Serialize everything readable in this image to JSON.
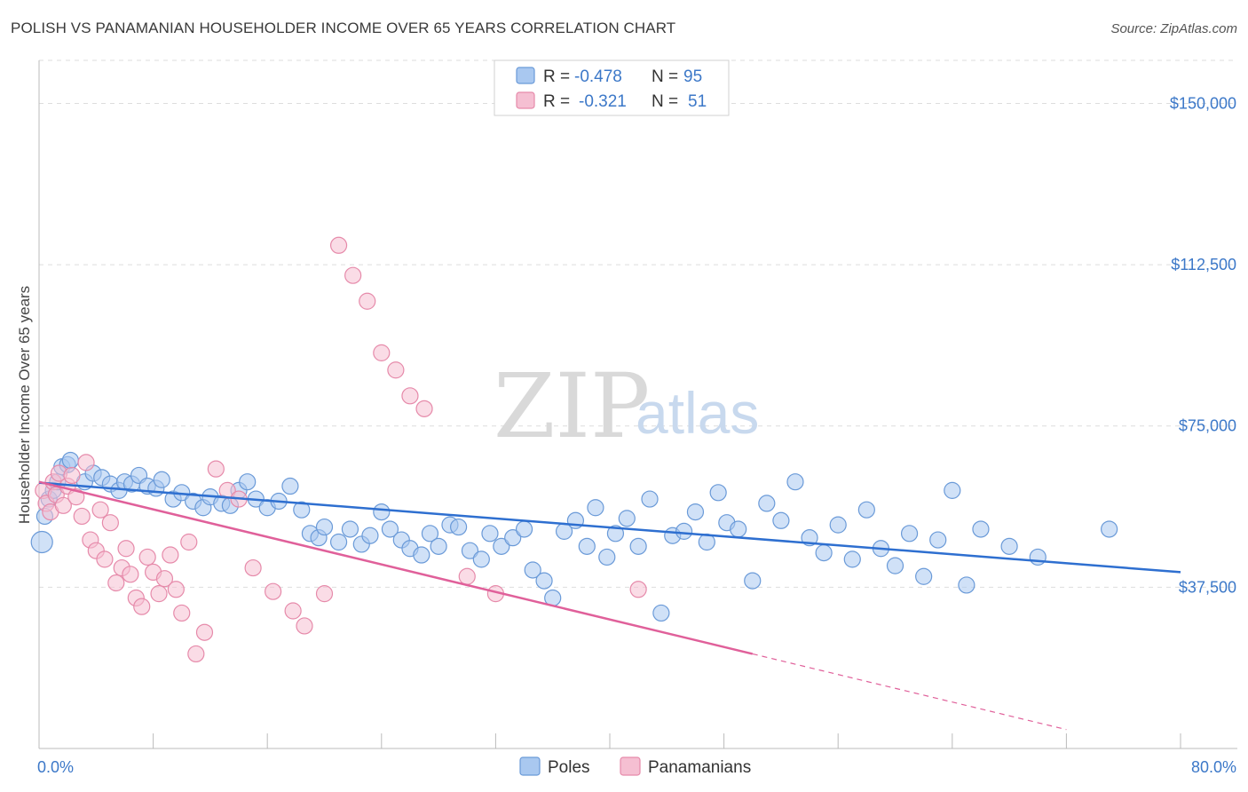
{
  "header": {
    "title": "POLISH VS PANAMANIAN HOUSEHOLDER INCOME OVER 65 YEARS CORRELATION CHART",
    "source": "Source: ZipAtlas.com"
  },
  "watermark": {
    "part1": "ZIP",
    "part2": "atlas"
  },
  "colors": {
    "poles_fill": "#a9c8f0",
    "poles_stroke": "#6a9ad8",
    "poles_line": "#2e6fd0",
    "panamanians_fill": "#f5bfd2",
    "panamanians_stroke": "#e68aaa",
    "panamanians_line": "#e0609a",
    "tick": "#3c78c8",
    "grid": "#dddddd"
  },
  "legend": {
    "rows": [
      {
        "r_label": "R = ",
        "r_value": "-0.478",
        "n_label": "N = ",
        "n_value": "95"
      },
      {
        "r_label": "R = ",
        "r_value": "-0.321",
        "n_label": "N = ",
        "n_value": "51"
      }
    ]
  },
  "chart_data": {
    "type": "scatter",
    "title": "POLISH VS PANAMANIAN HOUSEHOLDER INCOME OVER 65 YEARS CORRELATION CHART",
    "ylabel": "Householder Income Over 65 years",
    "xlabel": "",
    "xlim": [
      0,
      80
    ],
    "ylim": [
      0,
      160000
    ],
    "x_tick_labels": [
      "0.0%",
      "80.0%"
    ],
    "y_ticks": [
      37500,
      75000,
      112500,
      150000
    ],
    "y_tick_labels": [
      "$37,500",
      "$75,000",
      "$112,500",
      "$150,000"
    ],
    "grid": true,
    "legend_placement": "top-center",
    "series": [
      {
        "name": "Poles",
        "trend": {
          "x": [
            0,
            80
          ],
          "y": [
            61800,
            41000
          ]
        },
        "points": [
          [
            0.2,
            48000
          ],
          [
            0.4,
            54000
          ],
          [
            0.7,
            58000
          ],
          [
            1.0,
            60000
          ],
          [
            1.3,
            62000
          ],
          [
            1.6,
            65500
          ],
          [
            2.0,
            66000
          ],
          [
            2.2,
            67000
          ],
          [
            3.2,
            62000
          ],
          [
            3.8,
            64000
          ],
          [
            4.4,
            63000
          ],
          [
            5.0,
            61500
          ],
          [
            5.6,
            60000
          ],
          [
            6.0,
            62000
          ],
          [
            6.5,
            61500
          ],
          [
            7.0,
            63500
          ],
          [
            7.6,
            61000
          ],
          [
            8.2,
            60500
          ],
          [
            8.6,
            62500
          ],
          [
            9.4,
            58000
          ],
          [
            10.0,
            59500
          ],
          [
            10.8,
            57500
          ],
          [
            11.5,
            56000
          ],
          [
            12.0,
            58500
          ],
          [
            12.8,
            57000
          ],
          [
            13.4,
            56500
          ],
          [
            14.0,
            60000
          ],
          [
            14.6,
            62000
          ],
          [
            15.2,
            58000
          ],
          [
            16.0,
            56000
          ],
          [
            16.8,
            57500
          ],
          [
            17.6,
            61000
          ],
          [
            18.4,
            55500
          ],
          [
            19.0,
            50000
          ],
          [
            19.6,
            49000
          ],
          [
            20.0,
            51500
          ],
          [
            21.0,
            48000
          ],
          [
            21.8,
            51000
          ],
          [
            22.6,
            47500
          ],
          [
            23.2,
            49500
          ],
          [
            24.0,
            55000
          ],
          [
            24.6,
            51000
          ],
          [
            25.4,
            48500
          ],
          [
            26.0,
            46500
          ],
          [
            26.8,
            45000
          ],
          [
            27.4,
            50000
          ],
          [
            28.0,
            47000
          ],
          [
            28.8,
            52000
          ],
          [
            29.4,
            51500
          ],
          [
            30.2,
            46000
          ],
          [
            31.0,
            44000
          ],
          [
            31.6,
            50000
          ],
          [
            32.4,
            47000
          ],
          [
            33.2,
            49000
          ],
          [
            34.0,
            51000
          ],
          [
            34.6,
            41500
          ],
          [
            35.4,
            39000
          ],
          [
            36.0,
            35000
          ],
          [
            36.8,
            50500
          ],
          [
            37.6,
            53000
          ],
          [
            38.4,
            47000
          ],
          [
            39.0,
            56000
          ],
          [
            39.8,
            44500
          ],
          [
            40.4,
            50000
          ],
          [
            41.2,
            53500
          ],
          [
            42.0,
            47000
          ],
          [
            42.8,
            58000
          ],
          [
            43.6,
            31500
          ],
          [
            44.4,
            49500
          ],
          [
            45.2,
            50500
          ],
          [
            46.0,
            55000
          ],
          [
            46.8,
            48000
          ],
          [
            47.6,
            59500
          ],
          [
            48.2,
            52500
          ],
          [
            49.0,
            51000
          ],
          [
            50.0,
            39000
          ],
          [
            51.0,
            57000
          ],
          [
            52.0,
            53000
          ],
          [
            53.0,
            62000
          ],
          [
            54.0,
            49000
          ],
          [
            55.0,
            45500
          ],
          [
            56.0,
            52000
          ],
          [
            57.0,
            44000
          ],
          [
            58.0,
            55500
          ],
          [
            59.0,
            46500
          ],
          [
            60.0,
            42500
          ],
          [
            61.0,
            50000
          ],
          [
            62.0,
            40000
          ],
          [
            63.0,
            48500
          ],
          [
            64.0,
            60000
          ],
          [
            65.0,
            38000
          ],
          [
            66.0,
            51000
          ],
          [
            68.0,
            47000
          ],
          [
            70.0,
            44500
          ],
          [
            75.0,
            51000
          ]
        ]
      },
      {
        "name": "Panamanians",
        "trend": {
          "x": [
            0,
            50
          ],
          "y": [
            62000,
            22000
          ]
        },
        "points": [
          [
            0.3,
            60000
          ],
          [
            0.5,
            57000
          ],
          [
            0.8,
            55000
          ],
          [
            1.0,
            62000
          ],
          [
            1.2,
            59000
          ],
          [
            1.4,
            64000
          ],
          [
            1.7,
            56500
          ],
          [
            2.0,
            61000
          ],
          [
            2.3,
            63500
          ],
          [
            2.6,
            58500
          ],
          [
            3.0,
            54000
          ],
          [
            3.3,
            66500
          ],
          [
            3.6,
            48500
          ],
          [
            4.0,
            46000
          ],
          [
            4.3,
            55500
          ],
          [
            4.6,
            44000
          ],
          [
            5.0,
            52500
          ],
          [
            5.4,
            38500
          ],
          [
            5.8,
            42000
          ],
          [
            6.1,
            46500
          ],
          [
            6.4,
            40500
          ],
          [
            6.8,
            35000
          ],
          [
            7.2,
            33000
          ],
          [
            7.6,
            44500
          ],
          [
            8.0,
            41000
          ],
          [
            8.4,
            36000
          ],
          [
            8.8,
            39500
          ],
          [
            9.2,
            45000
          ],
          [
            9.6,
            37000
          ],
          [
            10.0,
            31500
          ],
          [
            10.5,
            48000
          ],
          [
            11.0,
            22000
          ],
          [
            11.6,
            27000
          ],
          [
            12.4,
            65000
          ],
          [
            13.2,
            60000
          ],
          [
            14.0,
            58000
          ],
          [
            15.0,
            42000
          ],
          [
            16.4,
            36500
          ],
          [
            17.8,
            32000
          ],
          [
            18.6,
            28500
          ],
          [
            20.0,
            36000
          ],
          [
            21.0,
            117000
          ],
          [
            22.0,
            110000
          ],
          [
            23.0,
            104000
          ],
          [
            24.0,
            92000
          ],
          [
            25.0,
            88000
          ],
          [
            26.0,
            82000
          ],
          [
            27.0,
            79000
          ],
          [
            30.0,
            40000
          ],
          [
            32.0,
            36000
          ],
          [
            42.0,
            37000
          ]
        ]
      }
    ]
  },
  "bottom_legend": {
    "items": [
      "Poles",
      "Panamanians"
    ]
  }
}
